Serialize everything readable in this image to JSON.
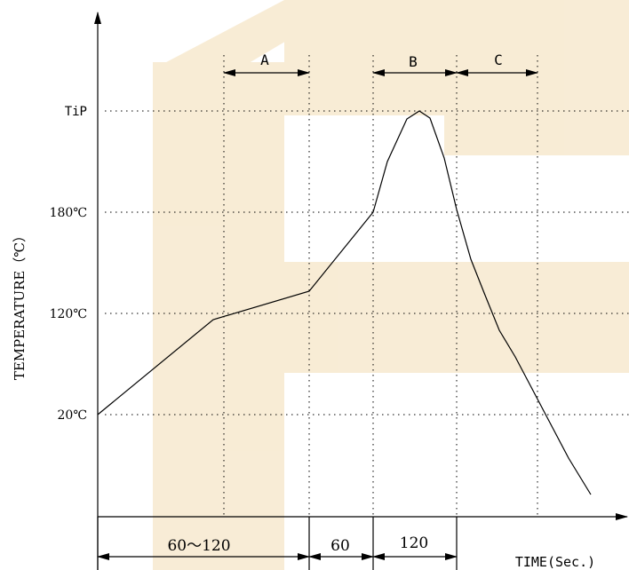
{
  "diagram": {
    "y_axis_label": "TEMPERATURE（℃）",
    "x_axis_label": "TIME(Sec.)",
    "y_ticks": {
      "tip": "TiP",
      "t180": "180℃",
      "t120": "120℃",
      "t20": "20℃"
    },
    "zones": {
      "a": "A",
      "b": "B",
      "c": "C"
    },
    "durations": {
      "preheat": "60～120",
      "ramp": "60",
      "reflow": "120"
    },
    "colors": {
      "line": "#000000",
      "watermark": "#f6e6c8"
    }
  }
}
